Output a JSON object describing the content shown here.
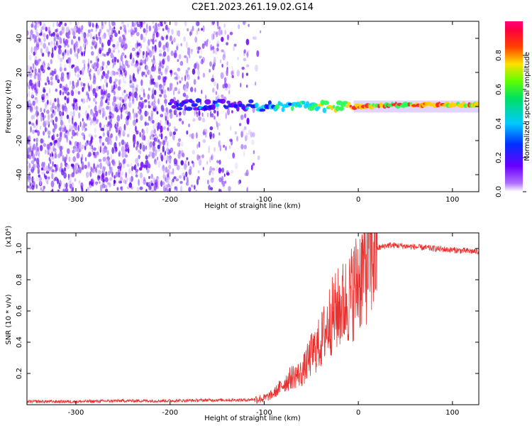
{
  "title": "C2E1.2023.261.19.02.G14",
  "chart_data": [
    {
      "type": "heatmap",
      "xlabel": "Height of straight line (km)",
      "ylabel": "Frequency (Hz)",
      "xlim": [
        -352,
        128
      ],
      "ylim": [
        -50,
        50
      ],
      "x_ticks": [
        -300,
        -200,
        -100,
        0,
        100
      ],
      "x_tick_labels": [
        "-300",
        "-200",
        "-100",
        "0",
        "100"
      ],
      "y_ticks": [
        -40,
        -20,
        0,
        20,
        40
      ],
      "y_tick_labels": [
        "-40",
        "-20",
        "0",
        "20",
        "40"
      ],
      "colorbar": {
        "label": "Normalized spectral amplitude",
        "ticks": [
          0.0,
          0.2,
          0.4,
          0.6,
          0.8
        ],
        "tick_labels": [
          "0.0",
          "0.2",
          "0.4",
          "0.6",
          "0.8"
        ],
        "range": [
          0,
          1
        ],
        "colormap": "rainbow (white-violet-blue-cyan-green-yellow-red-magenta)"
      },
      "ridge": {
        "description": "dominant signal line near 0 Hz",
        "points": [
          {
            "x": -200,
            "y": 1,
            "amp": 0.35
          },
          {
            "x": -130,
            "y": 1,
            "amp": 0.35
          },
          {
            "x": -90,
            "y": 0,
            "amp": 0.5
          },
          {
            "x": -60,
            "y": 0,
            "amp": 0.6
          },
          {
            "x": -30,
            "y": 0,
            "amp": 0.7
          },
          {
            "x": 0,
            "y": 0,
            "amp": 0.8
          },
          {
            "x": 50,
            "y": 1,
            "amp": 0.75
          },
          {
            "x": 80,
            "y": 1,
            "amp": 0.9
          },
          {
            "x": 128,
            "y": 1,
            "amp": 0.7
          }
        ]
      }
    },
    {
      "type": "line",
      "xlabel": "Height of straight line (km)",
      "ylabel": "SNR (10 * v/v)",
      "y_scale_note": "(x10⁴)",
      "xlim": [
        -352,
        128
      ],
      "ylim": [
        0,
        1.1
      ],
      "x_ticks": [
        -300,
        -200,
        -100,
        0,
        100
      ],
      "x_tick_labels": [
        "-300",
        "-200",
        "-100",
        "0",
        "100"
      ],
      "y_ticks": [
        0.2,
        0.4,
        0.6,
        0.8,
        1.0
      ],
      "y_tick_labels": [
        "0.2",
        "0.4",
        "0.6",
        "0.8",
        "1.0"
      ],
      "color": "#e8312f",
      "series": [
        {
          "x": [
            -352,
            -300,
            -250,
            -200,
            -150,
            -120,
            -100,
            -90,
            -80,
            -70,
            -60,
            -50,
            -40,
            -30,
            -20,
            -10,
            0,
            10,
            20,
            30,
            40,
            60,
            80,
            100,
            128
          ],
          "y": [
            0.02,
            0.02,
            0.025,
            0.025,
            0.03,
            0.03,
            0.04,
            0.07,
            0.13,
            0.18,
            0.2,
            0.32,
            0.4,
            0.55,
            0.62,
            0.68,
            0.8,
            0.93,
            1.0,
            1.02,
            1.02,
            1.01,
            1.0,
            0.99,
            0.98
          ]
        }
      ]
    }
  ]
}
